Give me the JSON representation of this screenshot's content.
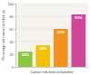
{
  "chart_data": {
    "type": "bar",
    "x_label": "Cancer risk level at baseline",
    "y_label": "Percentage with cancer at follow-up",
    "categories": [
      null,
      null,
      null,
      null
    ],
    "values": [
      24,
      34,
      60,
      83
    ],
    "value_labels": [
      "24%",
      "34%",
      "60%",
      "83%"
    ],
    "colors": [
      "#8cc63e",
      "#f2c200",
      "#f5921e",
      "#d0479a"
    ],
    "ylim": [
      0,
      100
    ],
    "yticks": [
      0,
      20,
      40,
      60,
      80,
      100
    ],
    "grid": true,
    "data_labels": true,
    "tick_labels": "y"
  }
}
